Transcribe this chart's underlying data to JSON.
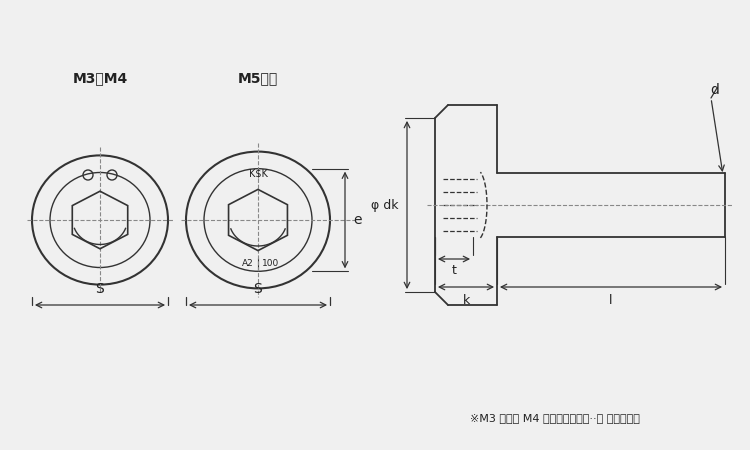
{
  "bg_color": "#f0f0f0",
  "line_color": "#333333",
  "text_color": "#222222",
  "label_m3m4": "M3、M4",
  "label_m5": "M5以上",
  "label_ksk": "K$K",
  "label_dk": "φ dk",
  "label_d": "d",
  "label_e": "e",
  "label_s": "S",
  "label_t": "t",
  "label_k": "k",
  "label_l": "l",
  "note": "※M3 および M4 は識別刷印が「··」 になります"
}
